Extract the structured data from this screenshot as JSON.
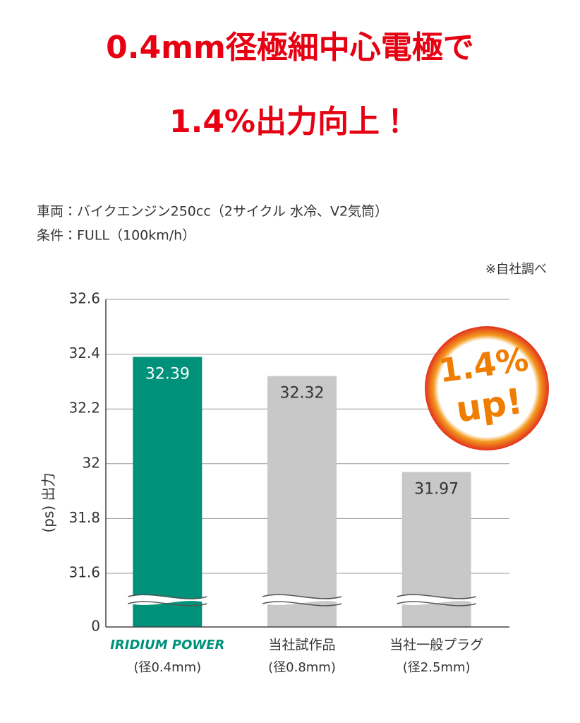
{
  "chart_data": {
    "type": "bar",
    "title": "0.4mm径極細中心電極で",
    "subtitle": "1.4%出力向上！",
    "notes": [
      "車両：バイクエンジン250cc（2サイクル 水冷、V2気筒）",
      "条件：FULL（100km/h）"
    ],
    "source": "※自社調べ",
    "y_label": "(ps) 出力",
    "badge": [
      "1.4%",
      "up!"
    ],
    "categories": [
      "IRIDIUM POWER",
      "当社試作品",
      "当社一般プラグ"
    ],
    "category_notes": [
      "(径0.4mm)",
      "(径0.8mm)",
      "(径2.5mm)"
    ],
    "values": [
      32.39,
      32.32,
      31.97
    ],
    "colors": [
      "#00917a",
      "#c8c8c8",
      "#c8c8c8"
    ],
    "value_label_colors": [
      "#ffffff",
      "#333333",
      "#333333"
    ],
    "ylim": [
      0,
      32.6
    ],
    "axis_break": [
      0,
      31.6
    ],
    "yticks": [
      0,
      31.6,
      31.8,
      32,
      32.2,
      32.4,
      32.6
    ],
    "grid": true
  }
}
